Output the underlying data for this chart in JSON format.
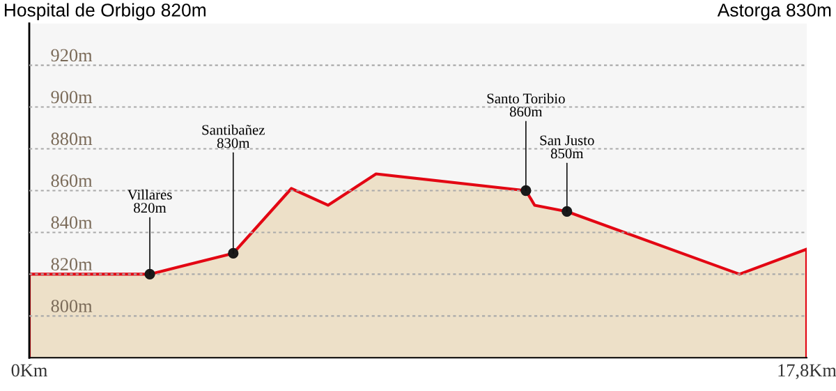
{
  "chart_data": {
    "type": "area",
    "x": [
      0,
      2.76,
      4.67,
      6.0,
      6.84,
      7.94,
      11.37,
      11.57,
      12.31,
      16.26,
      17.8
    ],
    "series": [
      {
        "color": "#e30613",
        "values": [
          820,
          820,
          830,
          861,
          853,
          868,
          860,
          853,
          850,
          820,
          832
        ]
      }
    ],
    "xlim": [
      0,
      17.8
    ],
    "ylim": [
      780,
      940
    ],
    "xticks": [
      {
        "value": 0,
        "label": "0Km"
      },
      {
        "value": 17.8,
        "label": "17,8Km"
      }
    ],
    "yticks": [
      {
        "value": 800,
        "label": "800m"
      },
      {
        "value": 820,
        "label": "820m"
      },
      {
        "value": 840,
        "label": "840m"
      },
      {
        "value": 860,
        "label": "860m"
      },
      {
        "value": 880,
        "label": "880m"
      },
      {
        "value": 900,
        "label": "900m"
      },
      {
        "value": 920,
        "label": "920m"
      }
    ],
    "grid": "y",
    "annotations": [
      {
        "text": "Hospital de Orbigo 820m"
      },
      {
        "text": "Astorga 830m"
      },
      {
        "text": "Villares\n820m",
        "x": 2.76,
        "y": 820
      },
      {
        "text": "Santibañez\n830m",
        "x": 4.67,
        "y": 830
      },
      {
        "text": "Santo Toribio\n860m",
        "x": 11.37,
        "y": 860
      },
      {
        "text": "San Justo\n850m",
        "x": 12.31,
        "y": 850
      }
    ]
  }
}
